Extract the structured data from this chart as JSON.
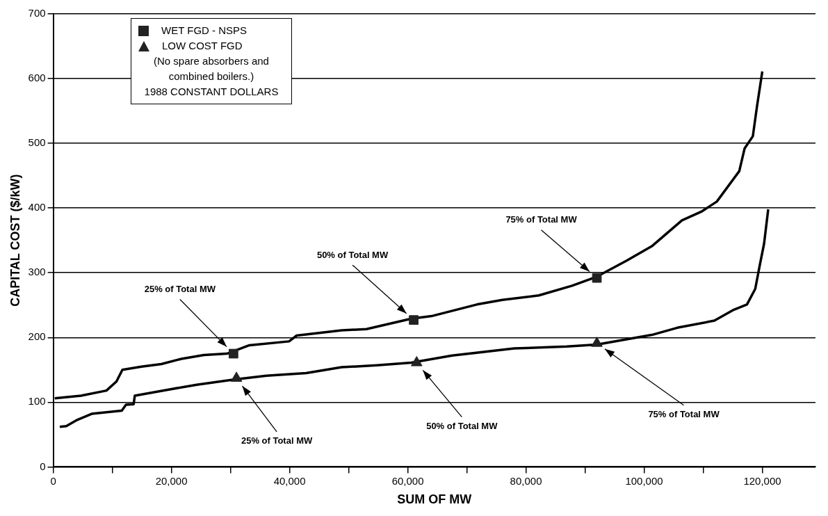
{
  "chart_data": {
    "type": "line",
    "xlabel": "SUM OF MW",
    "ylabel": "CAPITAL COST ($/kW)",
    "xlim": [
      0,
      129000
    ],
    "xticks": [
      0,
      {
        "value": 10000,
        "label": null
      },
      {
        "value": 20000,
        "label": "20,000"
      },
      {
        "value": 30000,
        "label": null
      },
      {
        "value": 40000,
        "label": "40,000"
      },
      {
        "value": 50000,
        "label": null
      },
      {
        "value": 60000,
        "label": "60,000"
      },
      {
        "value": 70000,
        "label": null
      },
      {
        "value": 80000,
        "label": "80,000"
      },
      {
        "value": 90000,
        "label": null
      },
      {
        "value": 100000,
        "label": "100,000"
      },
      {
        "value": 110000,
        "label": null
      },
      {
        "value": 120000,
        "label": "120,000"
      }
    ],
    "ylim": [
      0,
      700
    ],
    "yticks": [
      0,
      100,
      200,
      300,
      400,
      500,
      600,
      700
    ],
    "grid": "y",
    "legend": "top left",
    "line_style": "solid",
    "series": [
      {
        "color": "#000000",
        "marker": "none",
        "x": [
          250,
          4700,
          9000,
          10700,
          11700,
          14900,
          18300,
          21700,
          25500,
          29400,
          33200,
          39900,
          41200,
          48800,
          53000,
          57300,
          60600,
          64000,
          71700,
          76000,
          82200,
          87800,
          92000,
          97100,
          101300,
          106400,
          109800,
          112300,
          116100,
          117000,
          118400,
          119100,
          120000
        ],
        "values": [
          106,
          110,
          118,
          132,
          150,
          155,
          159,
          167,
          173,
          175,
          188,
          194,
          203,
          211,
          213,
          222,
          229,
          233,
          251,
          258,
          265,
          280,
          294,
          319,
          341,
          381,
          395,
          410,
          457,
          492,
          511,
          557,
          611
        ]
      },
      {
        "color": "#000000",
        "marker": "none",
        "x": [
          1100,
          2200,
          3900,
          6500,
          11600,
          12300,
          13600,
          13800,
          19200,
          24300,
          30600,
          36100,
          42800,
          48800,
          54800,
          60600,
          67500,
          78000,
          86900,
          92000,
          101300,
          105600,
          111900,
          115200,
          117400,
          118800,
          119600,
          120300,
          121000
        ],
        "values": [
          62,
          63,
          72,
          82,
          87,
          96,
          97,
          110,
          119,
          127,
          135,
          141,
          145,
          154,
          157,
          161,
          172,
          183,
          186,
          189,
          204,
          215,
          226,
          243,
          251,
          275,
          313,
          345,
          398
        ]
      },
      {
        "type": "scatter",
        "name": "WET FGD  - NSPS",
        "color": "#222222",
        "marker": "square",
        "x": [
          30500,
          61000,
          92000
        ],
        "values": [
          175,
          227,
          292
        ]
      },
      {
        "type": "scatter",
        "name": "LOW COST FGD",
        "color": "#222222",
        "marker": "triangle",
        "x": [
          31000,
          61500,
          92000
        ],
        "values": [
          137,
          161,
          191
        ]
      }
    ],
    "annotations": [
      "25% of Total MW",
      "50% of Total MW",
      "75% of Total MW",
      "25% of Total MW",
      "50% of Total MW",
      "75% of Total MW",
      "(No spare absorbers and combined boilers.)",
      "1988 CONSTANT DOLLARS"
    ]
  }
}
